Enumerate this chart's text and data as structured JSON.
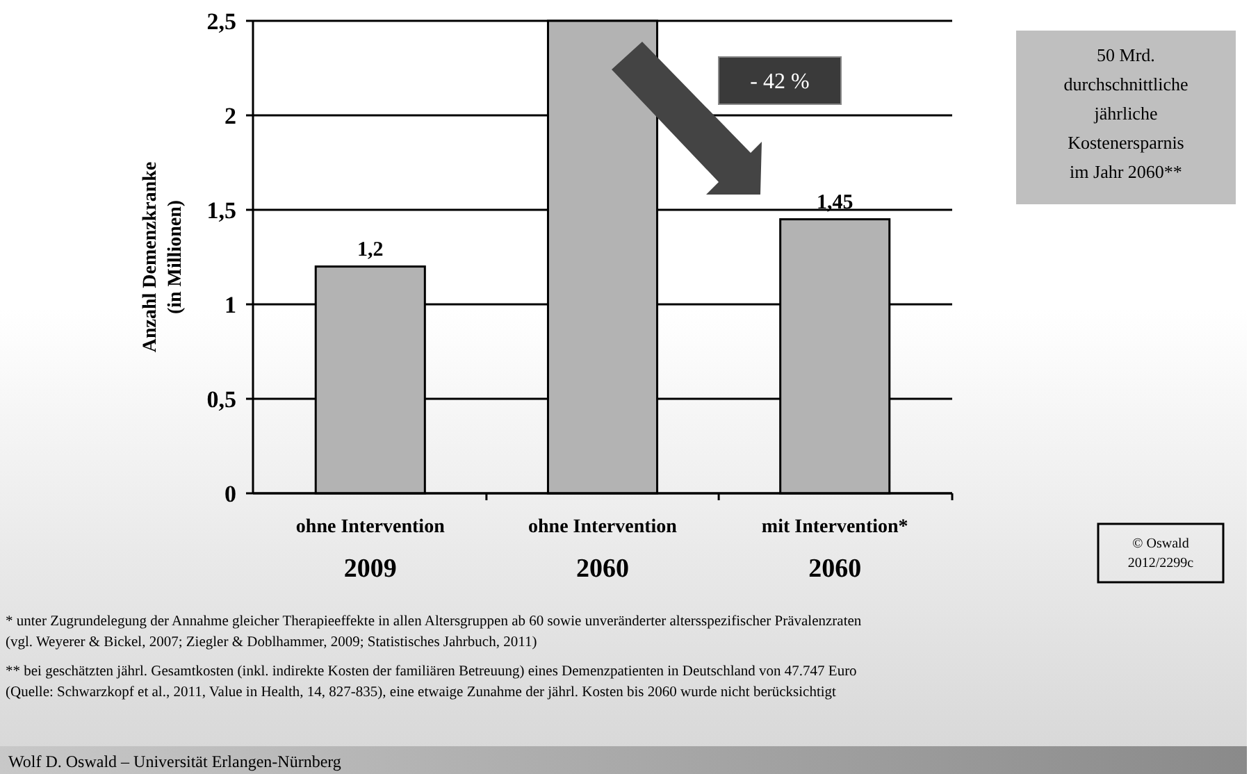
{
  "chart_data": {
    "type": "bar",
    "ylabel": "Anzahl Demenzkranke\n(in Millionen)",
    "categories": [
      "ohne Intervention\n2009",
      "ohne Intervention\n2060",
      "mit Intervention*\n2060"
    ],
    "values": [
      1.2,
      2.5,
      1.45
    ],
    "value_labels": [
      "1,2",
      null,
      "1,45"
    ],
    "color": "#b3b3b3",
    "ylim": [
      0,
      2.5
    ],
    "yticks": [
      0,
      {
        "value": 0.5,
        "label": "0,5"
      },
      1,
      {
        "value": 1.5,
        "label": "1,5"
      },
      2,
      {
        "value": 2.5,
        "label": "2,5"
      }
    ],
    "grid": "y",
    "annotations": [
      "- 42 %",
      "50 Mrd.\ndurchschnittliche\njährliche\nKostenersparnis\nim Jahr 2060**",
      "© Oswald\n2012/2299c",
      "* unter Zugrundelegung der Annahme gleicher Therapieeffekte in allen Altersgruppen ab 60 sowie unveränderter altersspezifischer Prävalenzraten\n(vgl. Weyerer & Bickel, 2007; Ziegler & Doblhammer, 2009; Statistisches Jahrbuch, 2011)",
      "** bei geschätzten jährl. Gesamtkosten (inkl. indirekte Kosten der familiären Betreuung) eines Demenzpatienten in Deutschland von 47.747 Euro\n(Quelle: Schwarzkopf et al., 2011, Value in Health, 14, 827-835), eine etwaige Zunahme der jährl. Kosten bis 2060 wurde nicht berücksichtigt",
      "Wolf D. Oswald – Universität Erlangen-Nürnberg"
    ]
  }
}
